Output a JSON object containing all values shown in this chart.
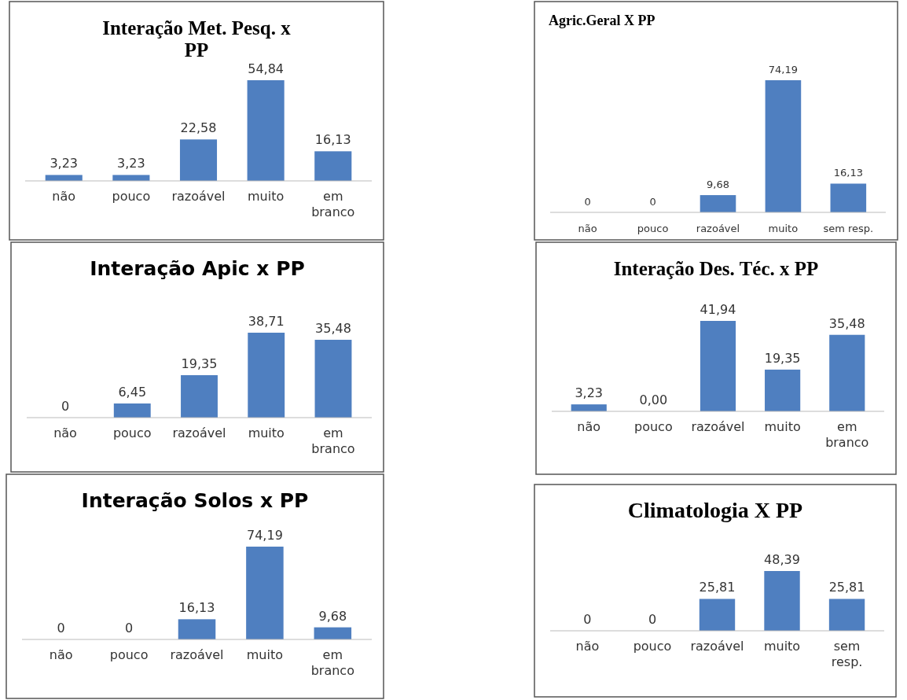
{
  "chart_data": [
    {
      "type": "bar",
      "title": "Interação Met. Pesq. x PP",
      "categories": [
        "não",
        "pouco",
        "razoável",
        "muito",
        "em branco"
      ],
      "values": [
        3.23,
        3.23,
        22.58,
        54.84,
        16.13
      ],
      "value_labels": [
        "3,23",
        "3,23",
        "22,58",
        "54,84",
        "16,13"
      ],
      "color": "#4f7fc0"
    },
    {
      "type": "bar",
      "title": "Agric.Geral  X  PP",
      "categories": [
        "não",
        "pouco",
        "razoável",
        "muito",
        "sem resp."
      ],
      "values": [
        0,
        0,
        9.68,
        74.19,
        16.13
      ],
      "value_labels": [
        "0",
        "0",
        "9,68",
        "74,19",
        "16,13"
      ],
      "color": "#4f7fc0"
    },
    {
      "type": "bar",
      "title": "Interação Apic x PP",
      "categories": [
        "não",
        "pouco",
        "razoável",
        "muito",
        "em branco"
      ],
      "values": [
        0,
        6.45,
        19.35,
        38.71,
        35.48
      ],
      "value_labels": [
        "0",
        "6,45",
        "19,35",
        "38,71",
        "35,48"
      ],
      "color": "#4f7fc0"
    },
    {
      "type": "bar",
      "title": "Interação  Des. Téc. x PP",
      "categories": [
        "não",
        "pouco",
        "razoável",
        "muito",
        "em branco"
      ],
      "values": [
        3.23,
        0,
        41.94,
        19.35,
        35.48
      ],
      "value_labels": [
        "3,23",
        "0,00",
        "41,94",
        "19,35",
        "35,48"
      ],
      "color": "#4f7fc0"
    },
    {
      "type": "bar",
      "title": "Interação Solos x PP",
      "categories": [
        "não",
        "pouco",
        "razoável",
        "muito",
        "em branco"
      ],
      "values": [
        0,
        0,
        16.13,
        74.19,
        9.68
      ],
      "value_labels": [
        "0",
        "0",
        "16,13",
        "74,19",
        "9,68"
      ],
      "color": "#4f7fc0"
    },
    {
      "type": "bar",
      "title": "Climatologia X PP",
      "categories": [
        "não",
        "pouco",
        "razoável",
        "muito",
        "sem resp."
      ],
      "values": [
        0,
        0,
        25.81,
        48.39,
        25.81
      ],
      "value_labels": [
        "0",
        "0",
        "25,81",
        "48,39",
        "25,81"
      ],
      "color": "#4f7fc0"
    }
  ]
}
